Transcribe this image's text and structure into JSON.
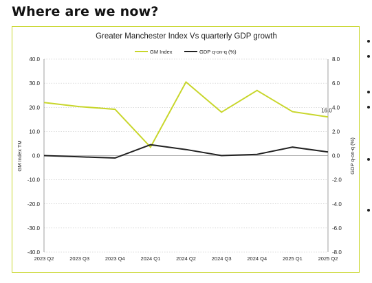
{
  "page": {
    "title": "Where are we now?"
  },
  "chart_data": {
    "type": "line",
    "title": "Greater Manchester Index Vs quarterly GDP growth",
    "categories": [
      "2023 Q2",
      "2023 Q3",
      "2023 Q4",
      "2024 Q1",
      "2024 Q2",
      "2024 Q3",
      "2024 Q4",
      "2025 Q1",
      "2025 Q2"
    ],
    "series": [
      {
        "name": "GM Index",
        "axis": "left",
        "color": "#c8d62b",
        "values": [
          22.0,
          20.3,
          19.2,
          3.5,
          30.5,
          18.0,
          27.0,
          18.2,
          16.0
        ]
      },
      {
        "name": "GDP q-on-q (%)",
        "axis": "right",
        "color": "#222222",
        "values": [
          0.0,
          -0.1,
          -0.2,
          0.9,
          0.5,
          0.0,
          0.1,
          0.7,
          0.3
        ]
      }
    ],
    "y_left": {
      "label": "GM Index TM",
      "range": [
        -40,
        40
      ],
      "step": 10,
      "ticks": [
        "40.0",
        "30.0",
        "20.0",
        "10.0",
        "0.0",
        "-10.0",
        "-20.0",
        "-30.0",
        "-40.0"
      ]
    },
    "y_right": {
      "label": "GDP q-on-q (%)",
      "range": [
        -8,
        8
      ],
      "step": 2,
      "ticks": [
        "8.0",
        "6.0",
        "4.0",
        "2.0",
        "0.0",
        "-2.0",
        "-4.0",
        "-6.0",
        "-8.0"
      ]
    },
    "annotation": {
      "text": "16.0",
      "series": "GM Index",
      "index": 8
    },
    "legend": "top-center",
    "grid": "horizontal-dotted"
  }
}
